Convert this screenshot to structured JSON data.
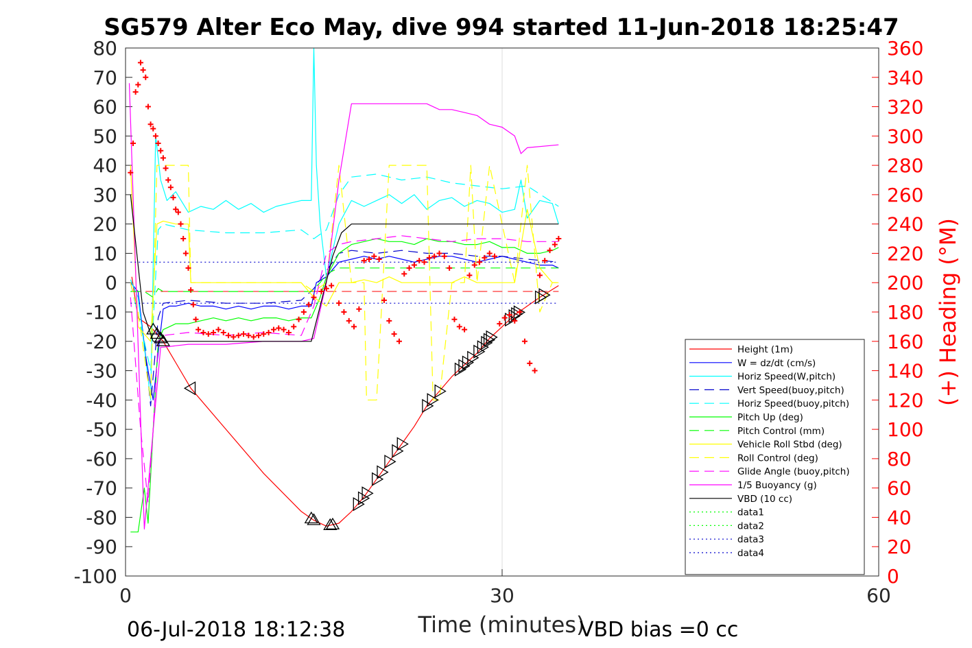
{
  "chart_data": {
    "type": "line",
    "title": "SG579 Alter Eco May, dive 994 started 11-Jun-2018 18:25:47",
    "xlabel": "Time (minutes)",
    "ylabel": "",
    "y2label": "(+) Heading (°M)",
    "xlim": [
      0,
      60
    ],
    "ylim": [
      -100,
      80
    ],
    "y2lim": [
      0,
      360
    ],
    "xticks": [
      "0",
      "30",
      "60"
    ],
    "yticks": [
      "80",
      "70",
      "60",
      "50",
      "40",
      "30",
      "20",
      "10",
      "0",
      "-10",
      "-20",
      "-30",
      "-40",
      "-50",
      "-60",
      "-70",
      "-80",
      "-90",
      "-100"
    ],
    "y2ticks": [
      "360",
      "340",
      "320",
      "300",
      "280",
      "260",
      "240",
      "220",
      "200",
      "180",
      "160",
      "140",
      "120",
      "100",
      "80",
      "60",
      "40",
      "20",
      "0"
    ],
    "grid": "x-only",
    "legend_position": "lower-right",
    "footer_left": "06-Jul-2018 18:12:38",
    "footer_right": "VBD bias =0 cc",
    "colors": {
      "red": "#ff0000",
      "blue": "#0000ff",
      "cyan": "#00ffff",
      "darkblue": "#0000cc",
      "green": "#00ff00",
      "yellow": "#ffff00",
      "magenta": "#ff00ff",
      "black": "#000000",
      "heading": "#ff0000"
    },
    "series": [
      {
        "name": "Height (1m)",
        "color": "#ff0000",
        "style": "solid",
        "x": [
          0.5,
          1,
          2,
          3,
          5.2,
          8,
          11,
          14,
          15,
          16,
          17,
          18,
          19,
          20,
          21,
          22,
          23,
          24,
          25,
          26,
          27,
          28,
          29,
          30,
          31,
          32,
          33,
          34.5
        ],
        "y": [
          2,
          -12,
          -15,
          -20,
          -36,
          -50,
          -65,
          -78,
          -81,
          -83,
          -82,
          -78,
          -73,
          -67,
          -61,
          -55,
          -49,
          -42,
          -37,
          -32,
          -28,
          -24,
          -19,
          -15,
          -11,
          -8,
          -5,
          -1
        ]
      },
      {
        "name": "W = dz/dt (cm/s)",
        "color": "#0000ff",
        "style": "solid",
        "x": [
          0.4,
          1,
          1.6,
          2.2,
          2.7,
          3,
          3.5,
          4,
          5,
          6,
          7,
          8,
          9,
          10,
          11,
          12,
          13,
          14,
          14.8,
          15.2,
          16,
          17,
          18,
          19,
          20,
          21,
          22,
          23,
          24,
          25,
          26,
          27,
          28,
          29,
          30,
          31,
          32,
          33,
          34,
          34.5
        ],
        "y": [
          0,
          -3,
          -25,
          -40,
          -20,
          -9,
          -8,
          -8,
          -7,
          -8,
          -8,
          -9,
          -8,
          -9,
          -8,
          -8,
          -9,
          -8,
          -8,
          0,
          2,
          7,
          8,
          9,
          8,
          9,
          8,
          7,
          8,
          9,
          9,
          8,
          7,
          8,
          9,
          8,
          7,
          6,
          6,
          5
        ]
      },
      {
        "name": "Horiz Speed(W,pitch)",
        "color": "#00ffff",
        "style": "solid",
        "x": [
          0.4,
          1,
          1.5,
          2,
          2.4,
          2.8,
          3.3,
          4,
          5,
          6,
          7,
          8,
          9,
          10,
          11,
          12,
          13,
          14,
          14.8,
          15,
          15.2,
          15.5,
          16,
          17,
          18,
          19,
          20,
          21,
          22,
          23,
          24,
          25,
          26,
          27,
          28,
          29,
          30,
          31,
          31.5,
          32,
          33,
          34,
          34.5
        ],
        "y": [
          1,
          -5,
          -22,
          -40,
          50,
          35,
          28,
          31,
          24,
          26,
          25,
          28,
          25,
          27,
          24,
          26,
          27,
          28,
          28,
          80,
          40,
          20,
          2,
          20,
          28,
          26,
          28,
          30,
          27,
          30,
          25,
          28,
          29,
          26,
          28,
          27,
          24,
          25,
          35,
          22,
          28,
          27,
          20
        ]
      },
      {
        "name": "Vert Speed(buoy,pitch)",
        "color": "#0000cc",
        "style": "dashed",
        "x": [
          0.4,
          1.5,
          2,
          2.6,
          3,
          5,
          8,
          11,
          14,
          15,
          16,
          17,
          18,
          20,
          22,
          24,
          26,
          28,
          30,
          32,
          34.5
        ],
        "y": [
          0,
          -20,
          -42,
          -12,
          -7,
          -6,
          -7,
          -7,
          -6,
          -2,
          4,
          10,
          11,
          10,
          11,
          10,
          10,
          9,
          9,
          8,
          7
        ]
      },
      {
        "name": "Horiz Speed(buoy,pitch)",
        "color": "#00ffff",
        "style": "dashed",
        "x": [
          0.4,
          1.5,
          2,
          2.6,
          3,
          5,
          8,
          11,
          14,
          15,
          16,
          17,
          18,
          20,
          22,
          24,
          26,
          28,
          30,
          32,
          34.5
        ],
        "y": [
          0,
          -20,
          -30,
          18,
          20,
          18,
          17,
          17,
          18,
          15,
          18,
          30,
          36,
          37,
          35,
          36,
          34,
          33,
          32,
          33,
          26
        ]
      },
      {
        "name": "Pitch Up (deg)",
        "color": "#00ff00",
        "style": "solid",
        "x": [
          0.4,
          1,
          1.5,
          1.8,
          2.2,
          2.6,
          3,
          4,
          5,
          6,
          7,
          8,
          9,
          10,
          11,
          12,
          13,
          14,
          14.8,
          15.5,
          16,
          17,
          18,
          19,
          20,
          21,
          22,
          23,
          24,
          25,
          26,
          27,
          28,
          29,
          30,
          31,
          32,
          33,
          34,
          34.5
        ],
        "y": [
          -85,
          -85,
          -70,
          -82,
          -50,
          -20,
          -16,
          -14,
          -14,
          -13,
          -12,
          -13,
          -12,
          -13,
          -12,
          -12,
          -13,
          -12,
          -12,
          -5,
          2,
          10,
          13,
          14,
          15,
          14,
          14,
          13,
          15,
          14,
          14,
          13,
          13,
          14,
          12,
          12,
          10,
          10,
          11,
          12
        ]
      },
      {
        "name": "Pitch Control (mm)",
        "color": "#00ff00",
        "style": "dashed",
        "x": [
          0.4,
          1.5,
          2.2,
          2.6,
          3,
          14.8,
          15.5,
          16,
          17,
          18,
          34.5
        ],
        "y": [
          -3,
          -3,
          -5,
          -2,
          -3,
          -3,
          0,
          3,
          5,
          5,
          5
        ]
      },
      {
        "name": "Vehicle Roll Stbd (deg)",
        "color": "#ffff00",
        "style": "solid",
        "x": [
          0.4,
          1,
          2,
          2.5,
          3,
          4,
          5,
          5.2,
          6,
          8,
          10,
          12,
          14,
          15,
          16,
          17,
          18,
          19,
          20,
          21,
          22,
          23,
          24,
          25,
          26,
          27,
          28,
          29,
          30,
          31,
          32,
          33,
          34,
          34.5
        ],
        "y": [
          40,
          -15,
          -20,
          20,
          21,
          20,
          20,
          0,
          0,
          0,
          0,
          0,
          0,
          -5,
          -8,
          0,
          0,
          1,
          0,
          2,
          0,
          0,
          0,
          0,
          0,
          2,
          0,
          0,
          0,
          0,
          25,
          5,
          0,
          0
        ]
      },
      {
        "name": "Roll Control (deg)",
        "color": "#ffff00",
        "style": "dashed",
        "x": [
          0.4,
          1,
          2,
          2.5,
          4,
          5,
          5.2,
          14,
          15,
          16,
          17,
          18,
          19,
          19.2,
          20,
          20.5,
          21,
          24,
          24.5,
          25,
          26,
          27,
          27.5,
          28,
          29,
          31,
          32,
          33,
          34,
          34.5
        ],
        "y": [
          0,
          -10,
          -40,
          40,
          40,
          40,
          0,
          0,
          -3,
          0,
          40,
          0,
          0,
          -40,
          -40,
          0,
          40,
          40,
          -40,
          -40,
          0,
          0,
          40,
          0,
          40,
          0,
          40,
          -10,
          0,
          0
        ]
      },
      {
        "name": "Glide Angle (buoy,pitch)",
        "color": "#ff00ff",
        "style": "dashed",
        "x": [
          0.4,
          1.2,
          1.8,
          2.2,
          2.6,
          3,
          5,
          8,
          11,
          14,
          15,
          16,
          17,
          18,
          20,
          22,
          24,
          26,
          28,
          30,
          32,
          34.5
        ],
        "y": [
          -5,
          -50,
          -75,
          -50,
          -20,
          -18,
          -17,
          -18,
          -17,
          -18,
          -8,
          10,
          13,
          14,
          15,
          16,
          15,
          14,
          15,
          15,
          14,
          14
        ]
      },
      {
        "name": "1/5 Buoyancy (g)",
        "color": "#ff00ff",
        "style": "solid",
        "x": [
          0.3,
          1.5,
          2.8,
          3,
          5,
          8,
          11,
          14,
          15,
          16,
          17,
          18,
          20,
          22,
          24,
          25,
          26,
          27,
          28,
          29,
          30,
          31,
          31.5,
          32,
          34.5
        ],
        "y": [
          68,
          -84,
          -22,
          -22,
          -21,
          -21,
          -20,
          -20,
          -19,
          0,
          35,
          61,
          61,
          61,
          61,
          59,
          59,
          58,
          57,
          54,
          53,
          50,
          44,
          46,
          47
        ]
      },
      {
        "name": "VBD (10 cc)",
        "color": "#000000",
        "style": "solid",
        "x": [
          0.4,
          1.4,
          2.2,
          2.6,
          3,
          5,
          8,
          11,
          14,
          14.8,
          16.5,
          17.2,
          18,
          34.5
        ],
        "y": [
          30,
          -10,
          -20,
          -20,
          -20,
          -20,
          -20,
          -20,
          -20,
          -20,
          9,
          17,
          20,
          20
        ]
      },
      {
        "name": "data1",
        "color": "#00ff00",
        "style": "dotted",
        "x": [],
        "y": []
      },
      {
        "name": "data2",
        "color": "#00ff00",
        "style": "dotted",
        "x": [],
        "y": []
      },
      {
        "name": "data3",
        "color": "#0000cc",
        "style": "dotted",
        "x": [
          0.4,
          34.5
        ],
        "y": [
          7,
          7
        ]
      },
      {
        "name": "data4",
        "color": "#0000cc",
        "style": "dotted",
        "x": [
          0.4,
          34.5
        ],
        "y": [
          -7,
          -7
        ]
      }
    ],
    "reference_lines": [
      {
        "y": -3,
        "color": "#ff0000",
        "style": "dashed",
        "x": [
          0.4,
          34.5
        ]
      }
    ],
    "heading": {
      "axis": "right",
      "color": "#ff0000",
      "marker": "+",
      "x": [
        0.4,
        0.6,
        0.8,
        1.0,
        1.2,
        1.4,
        1.6,
        1.8,
        2.0,
        2.2,
        2.4,
        2.6,
        2.8,
        3.0,
        3.2,
        3.4,
        3.6,
        3.8,
        4.0,
        4.2,
        4.4,
        4.6,
        4.8,
        5.0,
        5.2,
        5.4,
        5.6,
        5.8,
        6.2,
        6.6,
        7.0,
        7.4,
        7.8,
        8.2,
        8.6,
        9.0,
        9.4,
        9.8,
        10.2,
        10.6,
        11.0,
        11.4,
        11.8,
        12.2,
        12.6,
        13.0,
        13.4,
        13.8,
        14.2,
        14.6,
        15.0,
        15.6,
        16.0,
        16.4,
        17.0,
        17.4,
        17.8,
        18.2,
        18.6,
        19.0,
        19.4,
        19.8,
        20.2,
        20.6,
        21.0,
        21.4,
        21.8,
        22.2,
        22.6,
        23.0,
        23.4,
        23.8,
        24.2,
        24.6,
        25.0,
        25.4,
        25.8,
        26.2,
        26.6,
        27.0,
        27.4,
        27.8,
        28.2,
        28.6,
        29.0,
        29.4,
        29.8,
        30.2,
        30.6,
        31.0,
        31.4,
        31.8,
        32.2,
        32.6,
        33.0,
        33.4,
        33.8,
        34.2,
        34.5
      ],
      "y": [
        275,
        295,
        330,
        335,
        350,
        345,
        340,
        320,
        308,
        305,
        300,
        295,
        290,
        285,
        278,
        270,
        265,
        258,
        250,
        248,
        240,
        230,
        220,
        210,
        195,
        185,
        175,
        168,
        166,
        165,
        166,
        168,
        166,
        164,
        163,
        164,
        165,
        164,
        163,
        164,
        165,
        166,
        168,
        169,
        168,
        166,
        170,
        175,
        180,
        185,
        190,
        194,
        196,
        198,
        186,
        180,
        174,
        170,
        182,
        215,
        216,
        218,
        216,
        188,
        174,
        165,
        160,
        206,
        210,
        212,
        215,
        214,
        217,
        218,
        220,
        218,
        210,
        175,
        170,
        168,
        205,
        212,
        214,
        217,
        220,
        218,
        172,
        176,
        178,
        174,
        180,
        160,
        145,
        140,
        205,
        215,
        222,
        226,
        230
      ]
    },
    "markers": {
      "color": "#000000",
      "series": "Height (1m)",
      "up_triangles_x": [
        2.2,
        2.5,
        2.8,
        3.0,
        14.8,
        15.0,
        16.3,
        16.5
      ],
      "left_triangles_x": [
        5.2
      ],
      "right_triangles_x": [
        18.5,
        18.9,
        19.2,
        20.0,
        20.4,
        21.0,
        21.6,
        22.0,
        24.0,
        24.4,
        25.0,
        26.6,
        26.9,
        27.2,
        27.6,
        28.1,
        28.4,
        28.7,
        28.9,
        29.1,
        30.6,
        30.9,
        31.1,
        31.3,
        33.0,
        33.3
      ]
    }
  }
}
